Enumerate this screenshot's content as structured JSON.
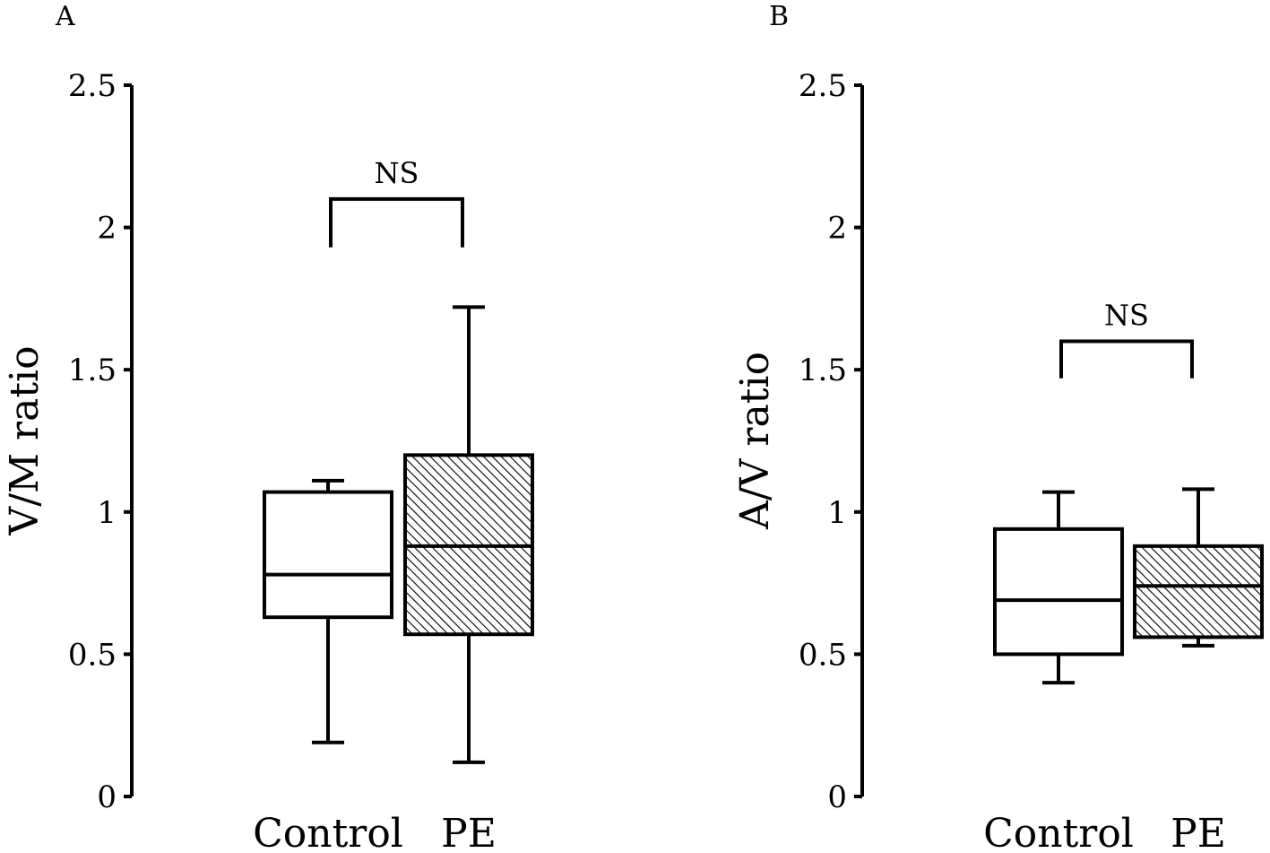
{
  "chart_data": [
    {
      "type": "box",
      "panel_label": "A",
      "ylabel": "V/M ratio",
      "ylim": [
        0,
        2.5
      ],
      "y_ticks": [
        "0",
        "0.5",
        "1",
        "1.5",
        "2",
        "2.5"
      ],
      "y_tick_values": [
        0,
        0.5,
        1,
        1.5,
        2,
        2.5
      ],
      "categories": [
        "Control",
        "PE"
      ],
      "boxes": [
        {
          "category": "Control",
          "min": 0.19,
          "q1": 0.63,
          "median": 0.78,
          "q3": 1.07,
          "max": 1.11,
          "fill": "white"
        },
        {
          "category": "PE",
          "min": 0.12,
          "q1": 0.57,
          "median": 0.88,
          "q3": 1.2,
          "max": 1.72,
          "fill": "hatched"
        }
      ],
      "annotation": {
        "text": "NS",
        "bracket_y": 2.1,
        "bracket_bottom": 1.93
      }
    },
    {
      "type": "box",
      "panel_label": "B",
      "ylabel": "A/V ratio",
      "ylim": [
        0,
        2.5
      ],
      "y_ticks": [
        "0",
        "0.5",
        "1",
        "1.5",
        "2",
        "2.5"
      ],
      "y_tick_values": [
        0,
        0.5,
        1,
        1.5,
        2,
        2.5
      ],
      "categories": [
        "Control",
        "PE"
      ],
      "boxes": [
        {
          "category": "Control",
          "min": 0.4,
          "q1": 0.5,
          "median": 0.69,
          "q3": 0.94,
          "max": 1.07,
          "fill": "white"
        },
        {
          "category": "PE",
          "min": 0.53,
          "q1": 0.56,
          "median": 0.74,
          "q3": 0.88,
          "max": 1.08,
          "fill": "hatched"
        }
      ],
      "annotation": {
        "text": "NS",
        "bracket_y": 1.6,
        "bracket_bottom": 1.47
      }
    }
  ]
}
